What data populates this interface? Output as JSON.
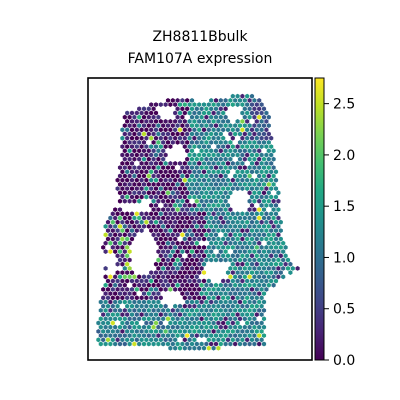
{
  "chart_data": {
    "type": "heatmap",
    "title": "ZH8811Bbulk",
    "subtitle": "FAM107A expression",
    "xlabel": "",
    "ylabel": "",
    "grid": false,
    "legend": "colorbar-right",
    "colormap": "viridis",
    "colorbar": {
      "range": [
        0.0,
        2.75
      ],
      "ticks": [
        0.0,
        0.5,
        1.0,
        1.5,
        2.0,
        2.5
      ],
      "tick_labels": [
        "0.0",
        "0.5",
        "1.0",
        "1.5",
        "2.0",
        "2.5"
      ]
    },
    "note_values": "spot expression values estimated from colors; low values dominate left region, moderate values (about 1.0-1.6) dominate right region"
  }
}
